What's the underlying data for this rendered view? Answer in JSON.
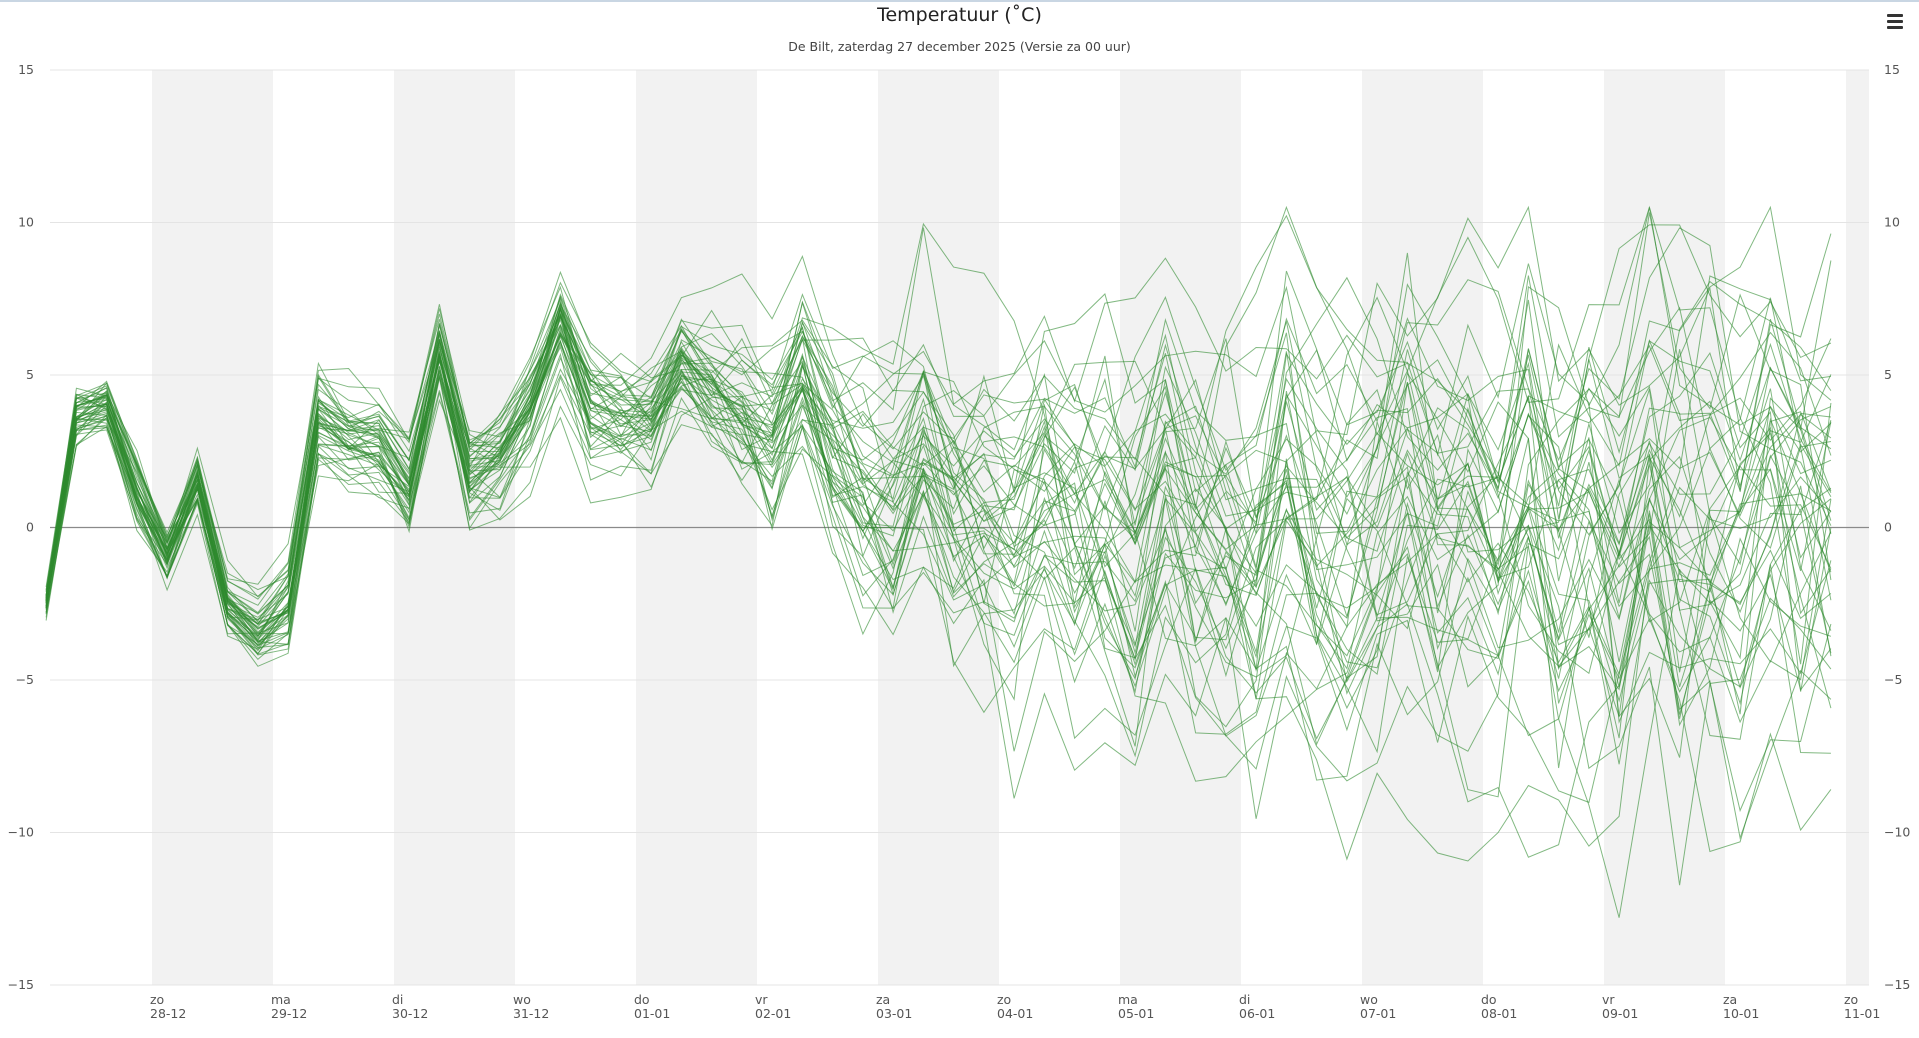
{
  "chart_data": {
    "type": "line",
    "title": "Temperatuur (˚C)",
    "subtitle": "De Bilt, zaterdag 27 december 2025 (Versie za 00 uur)",
    "ylim": [
      -15,
      15
    ],
    "yticks": [
      15,
      10,
      5,
      0,
      -5,
      -10,
      -15
    ],
    "x_unit": "days from 27-12 00 uur",
    "xlim": [
      0.06,
      15.0
    ],
    "grid": true,
    "weekend_bands": [
      [
        1,
        2
      ],
      [
        3,
        4
      ],
      [
        5,
        6
      ],
      [
        7,
        8
      ],
      [
        9,
        10
      ],
      [
        11,
        12
      ],
      [
        13,
        14
      ],
      [
        15,
        15.2
      ]
    ],
    "x_labels": [
      {
        "day": "zo",
        "date": "28-12",
        "x": 1
      },
      {
        "day": "ma",
        "date": "29-12",
        "x": 2
      },
      {
        "day": "di",
        "date": "30-12",
        "x": 3
      },
      {
        "day": "wo",
        "date": "31-12",
        "x": 4
      },
      {
        "day": "do",
        "date": "01-01",
        "x": 5
      },
      {
        "day": "vr",
        "date": "02-01",
        "x": 6
      },
      {
        "day": "za",
        "date": "03-01",
        "x": 7
      },
      {
        "day": "zo",
        "date": "04-01",
        "x": 8
      },
      {
        "day": "ma",
        "date": "05-01",
        "x": 9
      },
      {
        "day": "di",
        "date": "06-01",
        "x": 10
      },
      {
        "day": "wo",
        "date": "07-01",
        "x": 11
      },
      {
        "day": "do",
        "date": "08-01",
        "x": 12
      },
      {
        "day": "vr",
        "date": "09-01",
        "x": 13
      },
      {
        "day": "za",
        "date": "10-01",
        "x": 14
      },
      {
        "day": "zo",
        "date": "11-01",
        "x": 15
      }
    ],
    "series_color": "#2e8b2e",
    "series_count": 51,
    "x_step": 0.25,
    "x_start": 0.125,
    "ensemble_mean": [
      -2.5,
      3.6,
      4.0,
      1.2,
      -1.0,
      1.5,
      -2.5,
      -3.5,
      -2.5,
      3.6,
      2.9,
      2.6,
      1.2,
      5.6,
      1.6,
      2.2,
      3.8,
      6.5,
      3.8,
      3.4,
      3.4,
      5.3,
      4.2,
      3.5,
      2.8,
      5.0,
      2.2,
      1.0,
      0.6,
      2.8,
      0.5,
      0.0,
      -0.5,
      1.5,
      0.2,
      -0.2,
      -0.8,
      2.0,
      0.3,
      -0.3,
      -1.2,
      1.8,
      -0.5,
      -0.8,
      -0.5,
      1.3,
      0.0,
      0.6,
      -0.8,
      1.7,
      -0.5,
      0.2,
      -1.2,
      2.2,
      0.2,
      0.8,
      -0.5,
      1.5,
      0.3,
      0.5,
      3.0
    ],
    "ensemble_spread": [
      0.4,
      0.6,
      0.5,
      0.7,
      0.5,
      0.6,
      0.6,
      0.7,
      0.8,
      0.9,
      0.8,
      0.9,
      1.0,
      0.8,
      1.0,
      1.0,
      1.1,
      1.0,
      1.2,
      1.2,
      1.3,
      1.3,
      1.5,
      1.7,
      1.9,
      2.0,
      2.2,
      2.4,
      2.5,
      2.6,
      2.7,
      2.8,
      2.9,
      3.0,
      3.1,
      3.2,
      3.3,
      3.4,
      3.5,
      3.6,
      3.7,
      3.8,
      3.9,
      4.0,
      4.0,
      4.1,
      4.1,
      4.2,
      4.2,
      4.3,
      4.3,
      4.4,
      4.4,
      4.4,
      4.5,
      4.5,
      4.5,
      4.6,
      4.6,
      4.6,
      4.7
    ]
  },
  "toolbar": {
    "menu_icon": "hamburger-menu-icon"
  }
}
